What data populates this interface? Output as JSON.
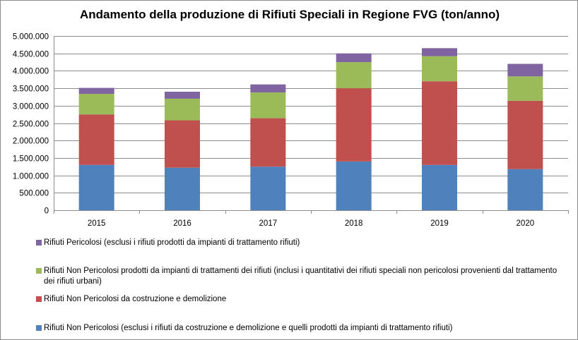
{
  "chart_data": {
    "type": "bar",
    "stacked": true,
    "title": "Andamento della produzione di Rifiuti Speciali in Regione FVG (ton/anno)",
    "xlabel": "",
    "ylabel": "",
    "categories": [
      "2015",
      "2016",
      "2017",
      "2018",
      "2019",
      "2020"
    ],
    "ylim": [
      0,
      5000000
    ],
    "yticks": [
      0,
      500000,
      1000000,
      1500000,
      2000000,
      2500000,
      3000000,
      3500000,
      4000000,
      4500000,
      5000000
    ],
    "ytick_labels": [
      "0",
      "500.000",
      "1.000.000",
      "1.500.000",
      "2.000.000",
      "2.500.000",
      "3.000.000",
      "3.500.000",
      "4.000.000",
      "4.500.000",
      "5.000.000"
    ],
    "grid": true,
    "legend_position": "bottom",
    "series": [
      {
        "name": "Rifiuti Non Pericolosi (esclusi i rifiuti da costruzione e demolizione e quelli prodotti da impianti di trattamento rifiuti)",
        "color": "#4f81bd",
        "values": [
          1300000,
          1220000,
          1250000,
          1400000,
          1300000,
          1180000
        ]
      },
      {
        "name": "Rifiuti Non Pericolosi da costruzione e demolizione",
        "color": "#c0504d",
        "values": [
          1450000,
          1360000,
          1390000,
          2100000,
          2400000,
          1960000
        ]
      },
      {
        "name": "Rifiuti Non Pericolosi prodotti da impianti di trattamenti dei rifiuti (inclusi i quantitativi dei rifiuti speciali non pericolosi provenienti dal trattamento dei rifiuti urbani)",
        "color": "#9bbb59",
        "values": [
          590000,
          620000,
          740000,
          750000,
          720000,
          700000
        ]
      },
      {
        "name": "Rifiuti Pericolosi (esclusi i rifiuti prodotti da impianti di trattamento rifiuti)",
        "color": "#8064a2",
        "values": [
          170000,
          200000,
          230000,
          250000,
          230000,
          360000
        ]
      }
    ],
    "legend_order": [
      3,
      2,
      1,
      0
    ]
  }
}
